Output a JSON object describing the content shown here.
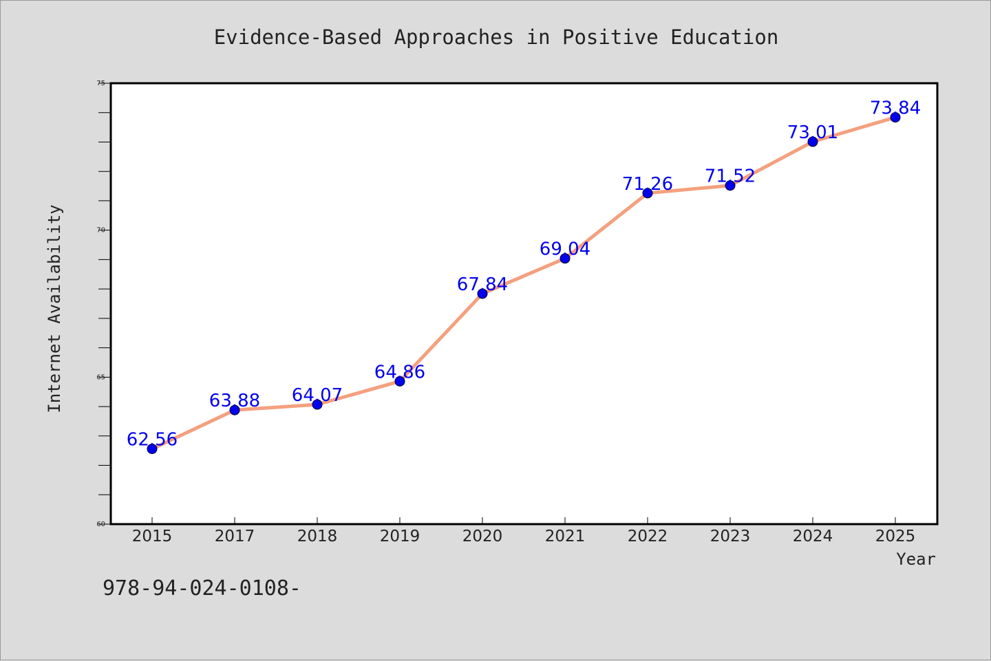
{
  "chart_data": {
    "type": "line",
    "title": "Evidence-Based Approaches in Positive Education",
    "xlabel": "Year",
    "ylabel": "Internet Availability",
    "categories": [
      "2015",
      "2017",
      "2018",
      "2019",
      "2020",
      "2021",
      "2022",
      "2023",
      "2024",
      "2025"
    ],
    "series": [
      {
        "values": [
          62.56,
          63.88,
          64.07,
          64.86,
          67.84,
          69.04,
          71.26,
          71.52,
          73.01,
          73.84
        ],
        "data_labels": [
          "62.56",
          "63.88",
          "64.07",
          "64.86",
          "67.84",
          "69.04",
          "71.26",
          "71.52",
          "73.01",
          "73.84"
        ],
        "line_color": "#f4a07e",
        "marker_color": "#0000ee",
        "label_color": "#0000ee"
      }
    ],
    "ylim": [
      60,
      75
    ],
    "yticks": [
      "60",
      "65",
      "70",
      "75"
    ],
    "grid": false,
    "legend": "none"
  },
  "footnote": "978-94-024-0108-",
  "colors": {
    "background": "#dcdcdc",
    "plot_background": "#ffffff",
    "axis": "#000000"
  }
}
